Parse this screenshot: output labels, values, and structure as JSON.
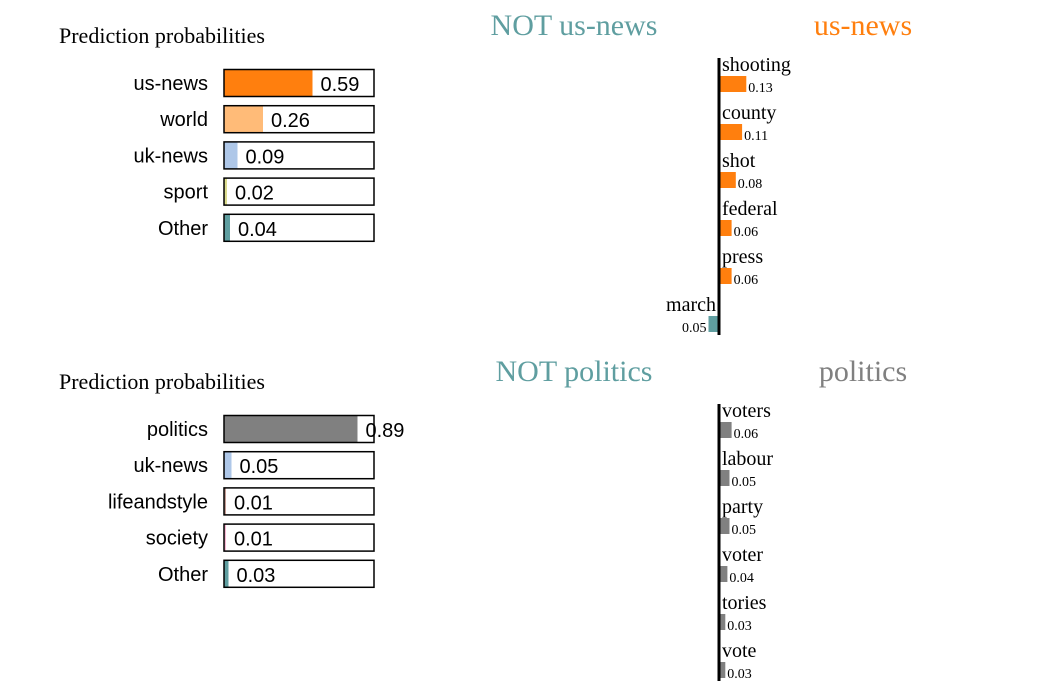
{
  "panels": [
    {
      "proba_title": "Prediction probabilities",
      "not_label": "NOT us-news",
      "pos_label": "us-news",
      "pos_color": "#ff7f0e",
      "neg_color": "#5f9ea0",
      "proba": [
        {
          "label": "us-news",
          "value": 0.59,
          "text": "0.59",
          "color": "#ff7f0e"
        },
        {
          "label": "world",
          "value": 0.26,
          "text": "0.26",
          "color": "#ffbb78"
        },
        {
          "label": "uk-news",
          "value": 0.09,
          "text": "0.09",
          "color": "#aec7e8"
        },
        {
          "label": "sport",
          "value": 0.02,
          "text": "0.02",
          "color": "#dbdb8d"
        },
        {
          "label": "Other",
          "value": 0.04,
          "text": "0.04",
          "color": "#5f9ea0"
        }
      ],
      "features": [
        {
          "word": "shooting",
          "weight": 0.13,
          "text": "0.13",
          "side": "pos"
        },
        {
          "word": "county",
          "weight": 0.11,
          "text": "0.11",
          "side": "pos"
        },
        {
          "word": "shot",
          "weight": 0.08,
          "text": "0.08",
          "side": "pos"
        },
        {
          "word": "federal",
          "weight": 0.06,
          "text": "0.06",
          "side": "pos"
        },
        {
          "word": "press",
          "weight": 0.06,
          "text": "0.06",
          "side": "pos"
        },
        {
          "word": "march",
          "weight": 0.05,
          "text": "0.05",
          "side": "neg"
        }
      ]
    },
    {
      "proba_title": "Prediction probabilities",
      "not_label": "NOT politics",
      "pos_label": "politics",
      "pos_color": "#808080",
      "neg_color": "#5f9ea0",
      "proba": [
        {
          "label": "politics",
          "value": 0.89,
          "text": "0.89",
          "color": "#808080"
        },
        {
          "label": "uk-news",
          "value": 0.05,
          "text": "0.05",
          "color": "#aec7e8"
        },
        {
          "label": "lifeandstyle",
          "value": 0.01,
          "text": "0.01",
          "color": "#c49c94"
        },
        {
          "label": "society",
          "value": 0.01,
          "text": "0.01",
          "color": "#f7b6d2"
        },
        {
          "label": "Other",
          "value": 0.03,
          "text": "0.03",
          "color": "#5f9ea0"
        }
      ],
      "features": [
        {
          "word": "voters",
          "weight": 0.06,
          "text": "0.06",
          "side": "pos"
        },
        {
          "word": "labour",
          "weight": 0.05,
          "text": "0.05",
          "side": "pos"
        },
        {
          "word": "party",
          "weight": 0.05,
          "text": "0.05",
          "side": "pos"
        },
        {
          "word": "voter",
          "weight": 0.04,
          "text": "0.04",
          "side": "pos"
        },
        {
          "word": "tories",
          "weight": 0.03,
          "text": "0.03",
          "side": "pos"
        },
        {
          "word": "vote",
          "weight": 0.03,
          "text": "0.03",
          "side": "pos"
        }
      ]
    }
  ],
  "chart_data": [
    {
      "type": "bar",
      "title": "Prediction probabilities",
      "categories": [
        "us-news",
        "world",
        "uk-news",
        "sport",
        "Other"
      ],
      "values": [
        0.59,
        0.26,
        0.09,
        0.02,
        0.04
      ],
      "xlim": [
        0,
        1
      ]
    },
    {
      "type": "bar",
      "title": "NOT us-news / us-news",
      "categories": [
        "shooting",
        "county",
        "shot",
        "federal",
        "press",
        "march"
      ],
      "values": [
        0.13,
        0.11,
        0.08,
        0.06,
        0.06,
        -0.05
      ]
    },
    {
      "type": "bar",
      "title": "Prediction probabilities",
      "categories": [
        "politics",
        "uk-news",
        "lifeandstyle",
        "society",
        "Other"
      ],
      "values": [
        0.89,
        0.05,
        0.01,
        0.01,
        0.03
      ],
      "xlim": [
        0,
        1
      ]
    },
    {
      "type": "bar",
      "title": "NOT politics / politics",
      "categories": [
        "voters",
        "labour",
        "party",
        "voter",
        "tories",
        "vote"
      ],
      "values": [
        0.06,
        0.05,
        0.05,
        0.04,
        0.03,
        0.03
      ]
    }
  ]
}
